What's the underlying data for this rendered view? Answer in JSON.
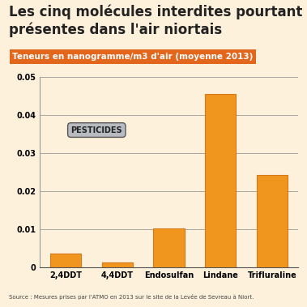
{
  "chart_data": {
    "type": "bar",
    "title": "Les cinq molécules interdites pourtant présentes dans l'air niortais",
    "subtitle": "Teneurs en nanogramme/m3 d'air (moyenne 2013)",
    "categories": [
      "2,4DDT",
      "4,4DDT",
      "Endosulfan",
      "Lindane",
      "Trifluraline"
    ],
    "values": [
      0.0035,
      0.0013,
      0.0102,
      0.0455,
      0.0243
    ],
    "color": "#f0961e",
    "ylim": [
      0,
      0.05
    ],
    "yticks": [
      0,
      0.01,
      0.02,
      0.03,
      0.04,
      0.05
    ],
    "grid": true,
    "annotations": [
      "PESTICIDES"
    ],
    "source": "Source : Mesures prises par l'ATMO en 2013 sur le site de la Levée de Sevreau à Niort."
  }
}
